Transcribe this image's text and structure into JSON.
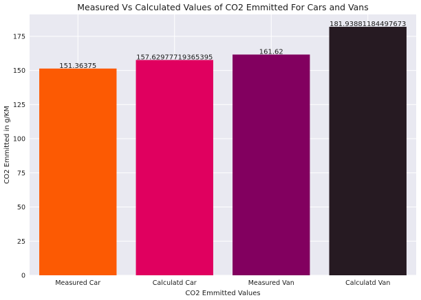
{
  "chart_data": {
    "type": "bar",
    "title": "Measured Vs Calculated Values of CO2 Emmitted For Cars and Vans",
    "xlabel": "CO2 Emmitted Values",
    "ylabel": "CO2 Emmitted in g/KM",
    "categories": [
      "Measured Car",
      "Calculatd Car",
      "Measured Van",
      "Calculatd Van"
    ],
    "values": [
      151.36375,
      157.62977719365395,
      161.62,
      181.93881184497673
    ],
    "data_labels": [
      "151.36375",
      "157.62977719365395",
      "161.62",
      "181.93881184497673"
    ],
    "colors": [
      "#fc5a03",
      "#e0005f",
      "#82005f",
      "#261a22"
    ],
    "ylim": [
      0,
      191
    ],
    "yticks": [
      0,
      25,
      50,
      75,
      100,
      125,
      150,
      175
    ],
    "grid": true,
    "background": "#e9e9f1"
  }
}
